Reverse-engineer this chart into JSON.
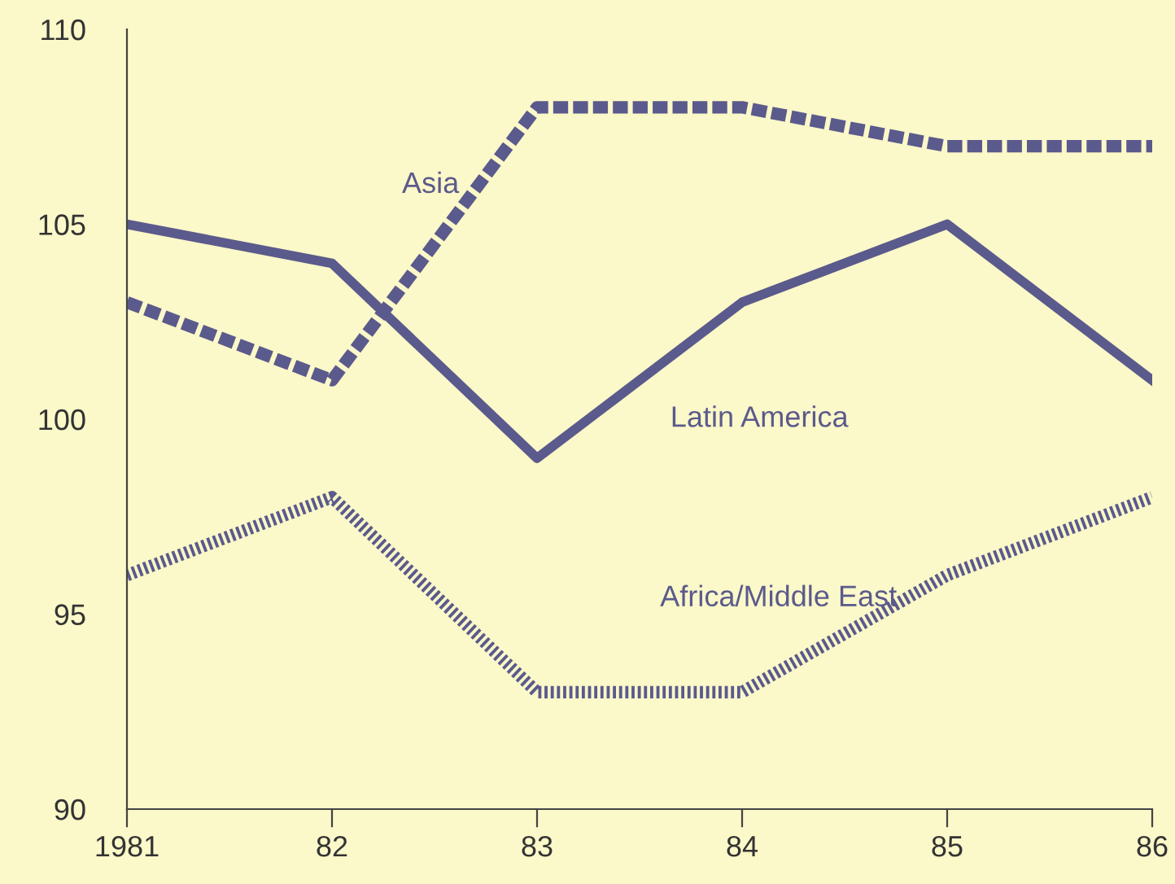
{
  "chart_data": {
    "type": "line",
    "categories": [
      "1981",
      "82",
      "83",
      "84",
      "85",
      "86"
    ],
    "series": [
      {
        "name": "Latin America",
        "color": "#5b5a8c",
        "line_style": "solid",
        "values": [
          105,
          104,
          99,
          103,
          105,
          101
        ]
      },
      {
        "name": "Asia",
        "color": "#5b5a8c",
        "line_style": "dashed",
        "values": [
          103,
          101,
          108,
          108,
          107,
          107
        ]
      },
      {
        "name": "Africa/Middle East",
        "color": "#5b5a8c",
        "line_style": "dotted",
        "values": [
          96,
          98,
          93,
          93,
          96,
          98
        ]
      }
    ],
    "ylim": [
      90,
      110
    ],
    "yticks": [
      90,
      95,
      100,
      105,
      110
    ],
    "grid": false,
    "legend": false,
    "marker": "none"
  }
}
